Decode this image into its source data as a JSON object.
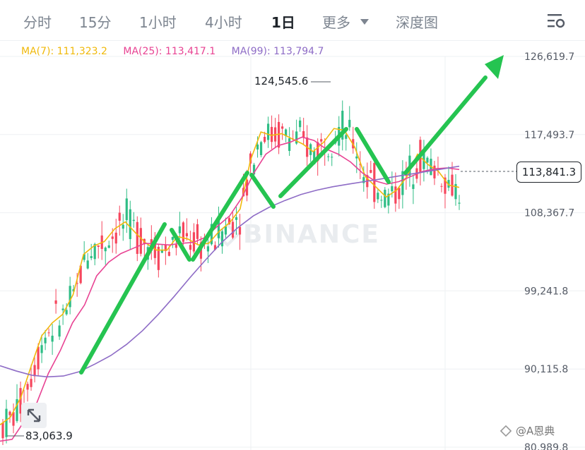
{
  "tabs": [
    {
      "label": "分时"
    },
    {
      "label": "15分"
    },
    {
      "label": "1小时"
    },
    {
      "label": "4小时"
    },
    {
      "label": "1日"
    },
    {
      "label": "更多"
    },
    {
      "label": "深度图"
    }
  ],
  "active_tab": "1日",
  "ma": {
    "ma7": "MA(7): 111,323.2",
    "ma25": "MA(25): 113,417.1",
    "ma99": "MA(99): 113,794.7"
  },
  "colors": {
    "ma7": "#f0b90b",
    "ma25": "#e84393",
    "ma99": "#8e6cc6",
    "up": "#2ebd85",
    "down": "#f6465d",
    "annotation": "#25c451"
  },
  "price_axis": [
    "126,619.7",
    "117,493.7",
    "108,367.7",
    "99,241.8",
    "90,115.8",
    "80,989.8"
  ],
  "current_price": "113,841.3",
  "high_label": "124,545.6",
  "low_label": "83,063.9",
  "watermark": "BINANCE",
  "author": "@A恩典",
  "chart_data": {
    "type": "line",
    "y_ticks": [
      126619.7,
      117493.7,
      108367.7,
      99241.8,
      90115.8,
      80989.8
    ],
    "ylim": [
      80989.8,
      126619.7
    ],
    "high": 124545.6,
    "low": 83063.9,
    "current": 113841.3,
    "series": [
      {
        "name": "MA(7)",
        "values": [
          83600,
          84500,
          86800,
          90500,
          94000,
          95500,
          96500,
          98800,
          103500,
          104500,
          105000,
          106500,
          107300,
          106000,
          104800,
          104000,
          104000,
          105600,
          105300,
          104600,
          104800,
          106200,
          107200,
          108800,
          114500,
          117800,
          117400,
          117600,
          117000,
          116400,
          115500,
          116600,
          118200,
          118000,
          116000,
          112600,
          111400,
          110200,
          111000,
          112600,
          115200,
          114000,
          113200,
          111600,
          111323
        ]
      },
      {
        "name": "MA(25)",
        "values": [
          81700,
          81900,
          84000,
          86000,
          89600,
          92300,
          95500,
          97600,
          101000,
          102600,
          103600,
          104200,
          104800,
          104700,
          104600,
          104800,
          104900,
          105500,
          106800,
          108000,
          110100,
          113000,
          115200,
          116200,
          116600,
          117200,
          116800,
          115800,
          115200,
          114300,
          113000,
          112100,
          111700,
          112000,
          112600,
          113200,
          113500,
          113600,
          113417
        ]
      },
      {
        "name": "MA(99)",
        "values": [
          90500,
          89900,
          89400,
          89200,
          89300,
          89800,
          90700,
          91700,
          93000,
          94600,
          96500,
          98600,
          100800,
          102900,
          104900,
          106600,
          108000,
          109000,
          109800,
          110500,
          111000,
          111400,
          111700,
          112000,
          112300,
          112600,
          112900,
          113200,
          113500,
          113794
        ]
      }
    ]
  }
}
